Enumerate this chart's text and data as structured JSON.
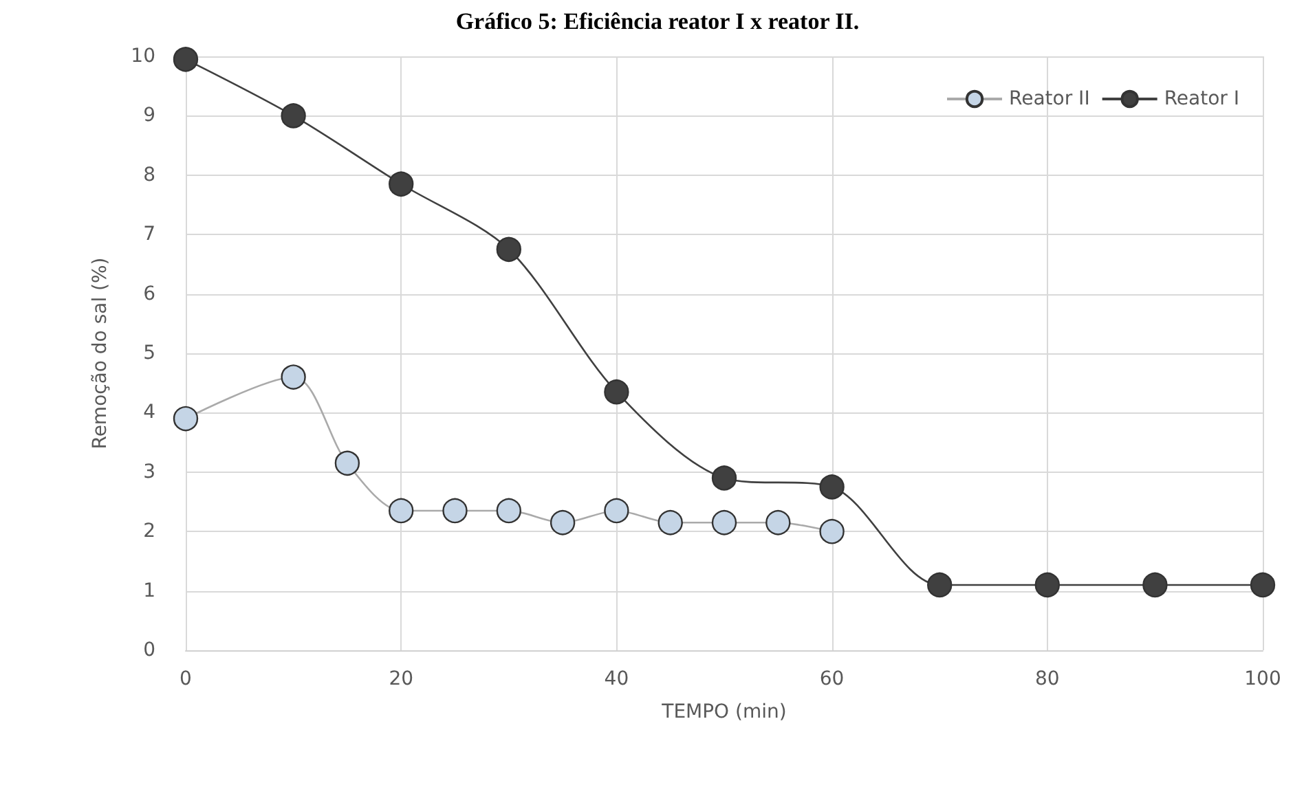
{
  "chart_data": {
    "type": "line",
    "title": "Gráfico 5: Eficiência reator I x reator II.",
    "xlabel": "TEMPO (min)",
    "ylabel": "Remoção do sal (%)",
    "series": [
      {
        "name": "Reator II",
        "color": "#c5d5e6",
        "x": [
          0,
          10,
          15,
          20,
          25,
          30,
          35,
          40,
          45,
          50,
          55,
          60
        ],
        "values": [
          3.9,
          4.6,
          3.15,
          2.35,
          2.35,
          2.35,
          2.15,
          2.35,
          2.15,
          2.15,
          2.15,
          2.0
        ]
      },
      {
        "name": "Reator I",
        "color": "#404040",
        "x": [
          0,
          10,
          20,
          30,
          40,
          50,
          60,
          70,
          80,
          90,
          100
        ],
        "values": [
          9.95,
          9.0,
          7.85,
          6.75,
          4.35,
          2.9,
          2.75,
          1.1,
          1.1,
          1.1,
          1.1
        ]
      }
    ],
    "xlim": [
      0,
      100
    ],
    "xticks": [
      0,
      20,
      40,
      60,
      80,
      100
    ],
    "ylim": [
      0,
      10
    ],
    "yticks": [
      0,
      1,
      2,
      3,
      4,
      5,
      6,
      7,
      8,
      9,
      10
    ],
    "grid": true,
    "legend": "top right",
    "marker": "circle",
    "line_style": "solid"
  }
}
